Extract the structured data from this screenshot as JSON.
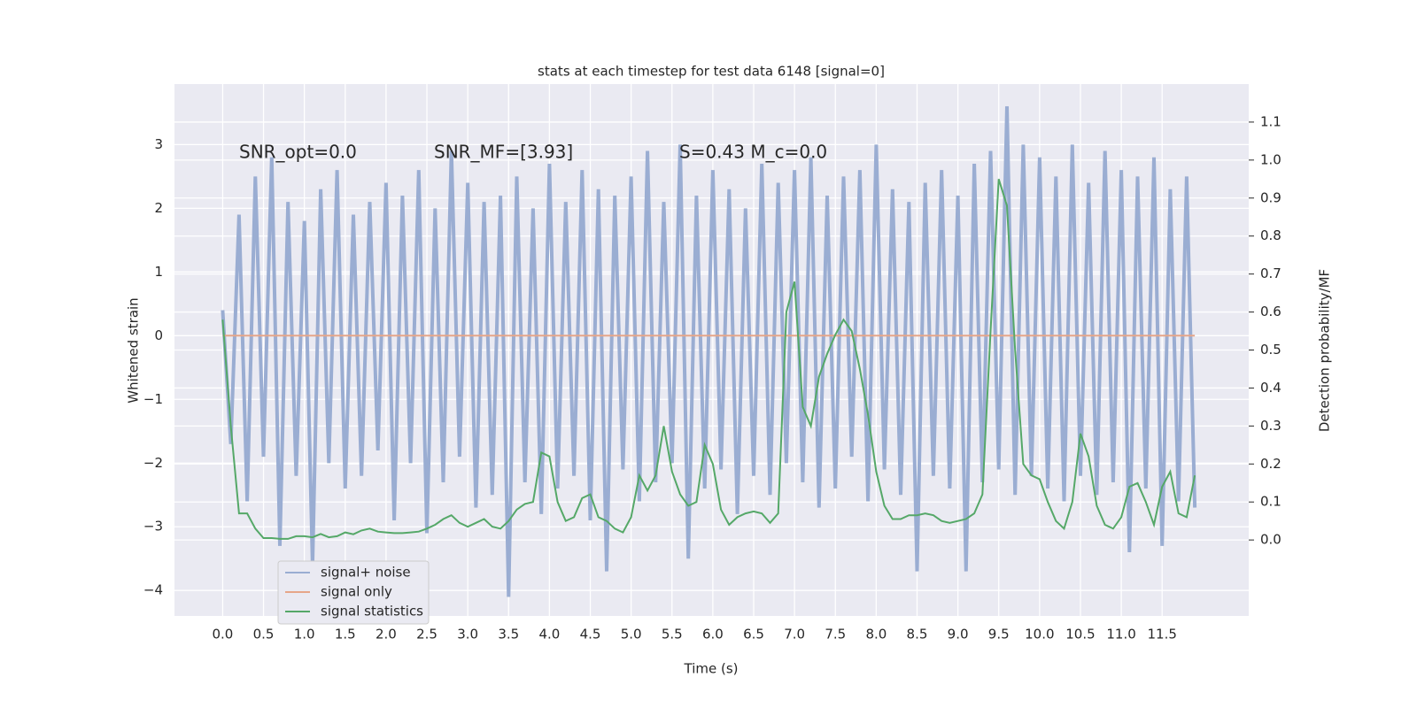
{
  "chart_data": {
    "type": "line",
    "title": "stats at each timestep for test data 6148 [signal=0]",
    "xlabel": "Time (s)",
    "ylabel": "Whitened strain",
    "y2label": "Detection probability/MF",
    "annotations": [
      "SNR_opt=0.0",
      "SNR_MF=[3.93]",
      "S=0.43   M_c=0.0"
    ],
    "xlim": [
      -0.59,
      12.56
    ],
    "ylim": [
      -4.4,
      3.95
    ],
    "y2lim": [
      -0.2,
      1.2
    ],
    "xticks": [
      {
        "value": 0,
        "label": "0.0"
      },
      0.5,
      {
        "value": 1,
        "label": "1.0"
      },
      1.5,
      {
        "value": 2,
        "label": "2.0"
      },
      2.5,
      {
        "value": 3,
        "label": "3.0"
      },
      3.5,
      {
        "value": 4,
        "label": "4.0"
      },
      4.5,
      {
        "value": 5,
        "label": "5.0"
      },
      5.5,
      {
        "value": 6,
        "label": "6.0"
      },
      6.5,
      {
        "value": 7,
        "label": "7.0"
      },
      7.5,
      {
        "value": 8,
        "label": "8.0"
      },
      8.5,
      {
        "value": 9,
        "label": "9.0"
      },
      9.5,
      {
        "value": 10,
        "label": "10.0"
      },
      10.5,
      {
        "value": 11,
        "label": "11.0"
      },
      11.5
    ],
    "yticks": [
      {
        "value": -4,
        "label": "−4"
      },
      {
        "value": -3,
        "label": "−3"
      },
      {
        "value": -2,
        "label": "−2"
      },
      {
        "value": -1,
        "label": "−1"
      },
      0,
      1,
      2,
      3
    ],
    "y2ticks": [
      {
        "value": 0,
        "label": "0.0"
      },
      0.1,
      0.2,
      0.3,
      0.4,
      0.5,
      0.6,
      0.7,
      0.8,
      0.9,
      {
        "value": 1,
        "label": "1.0"
      },
      1.1
    ],
    "grid": true,
    "legend": "lower left",
    "x": [
      0,
      0.1,
      0.2,
      0.3,
      0.4,
      0.5,
      0.6,
      0.7,
      0.8,
      0.9,
      1,
      1.1,
      1.2,
      1.3,
      1.4,
      1.5,
      1.6,
      1.7,
      1.8,
      1.9,
      2,
      2.1,
      2.2,
      2.3,
      2.4,
      2.5,
      2.6,
      2.7,
      2.8,
      2.9,
      3,
      3.1,
      3.2,
      3.3,
      3.4,
      3.5,
      3.6,
      3.7,
      3.8,
      3.9,
      4,
      4.1,
      4.2,
      4.3,
      4.4,
      4.5,
      4.6,
      4.7,
      4.8,
      4.9,
      5,
      5.1,
      5.2,
      5.3,
      5.4,
      5.5,
      5.6,
      5.7,
      5.8,
      5.9,
      6,
      6.1,
      6.2,
      6.3,
      6.4,
      6.5,
      6.6,
      6.7,
      6.8,
      6.9,
      7,
      7.1,
      7.2,
      7.3,
      7.4,
      7.5,
      7.6,
      7.7,
      7.8,
      7.9,
      8,
      8.1,
      8.2,
      8.3,
      8.4,
      8.5,
      8.6,
      8.7,
      8.8,
      8.9,
      9,
      9.1,
      9.2,
      9.3,
      9.4,
      9.5,
      9.6,
      9.7,
      9.8,
      9.9,
      10,
      10.1,
      10.2,
      10.3,
      10.4,
      10.5,
      10.6,
      10.7,
      10.8,
      10.9,
      11,
      11.1,
      11.2,
      11.3,
      11.4,
      11.5,
      11.6,
      11.7,
      11.8,
      11.9
    ],
    "series": [
      {
        "name": "signal+ noise",
        "color": "#9aadd2",
        "values": [
          0.4,
          -1.7,
          1.9,
          -2.6,
          2.5,
          -1.9,
          2.8,
          -3.3,
          2.1,
          -2.2,
          1.8,
          -3.6,
          2.3,
          -2.0,
          2.6,
          -2.4,
          1.9,
          -2.2,
          2.1,
          -1.8,
          2.4,
          -2.9,
          2.2,
          -2.0,
          2.6,
          -3.1,
          2.0,
          -2.3,
          2.9,
          -1.9,
          2.4,
          -2.7,
          2.1,
          -2.5,
          2.2,
          -4.1,
          2.5,
          -2.3,
          2.0,
          -2.8,
          2.7,
          -2.4,
          2.1,
          -2.2,
          2.6,
          -2.9,
          2.3,
          -3.7,
          2.2,
          -2.1,
          2.5,
          -2.6,
          2.9,
          -2.3,
          2.1,
          -2.0,
          3.0,
          -3.5,
          2.2,
          -2.4,
          2.6,
          -2.1,
          2.3,
          -2.8,
          2.0,
          -2.2,
          2.7,
          -2.5,
          2.4,
          -2.0,
          2.6,
          -2.3,
          2.8,
          -2.7,
          2.2,
          -2.4,
          2.5,
          -1.9,
          2.6,
          -2.6,
          3.0,
          -2.1,
          2.3,
          -2.5,
          2.1,
          -3.7,
          2.4,
          -2.2,
          2.6,
          -2.4,
          2.2,
          -3.7,
          2.7,
          -2.3,
          2.9,
          -2.1,
          3.6,
          -2.5,
          3.0,
          -2.2,
          2.8,
          -2.4,
          2.5,
          -2.6,
          3.0,
          -2.2,
          2.4,
          -2.5,
          2.9,
          -2.3,
          2.6,
          -3.4,
          2.5,
          -2.4,
          2.8,
          -3.3,
          2.3,
          -2.6,
          2.5,
          -2.7
        ]
      },
      {
        "name": "signal only",
        "color": "#e6a689",
        "values": [
          0,
          0,
          0,
          0,
          0,
          0,
          0,
          0,
          0,
          0,
          0,
          0,
          0,
          0,
          0,
          0,
          0,
          0,
          0,
          0,
          0,
          0,
          0,
          0,
          0,
          0,
          0,
          0,
          0,
          0,
          0,
          0,
          0,
          0,
          0,
          0,
          0,
          0,
          0,
          0,
          0,
          0,
          0,
          0,
          0,
          0,
          0,
          0,
          0,
          0,
          0,
          0,
          0,
          0,
          0,
          0,
          0,
          0,
          0,
          0,
          0,
          0,
          0,
          0,
          0,
          0,
          0,
          0,
          0,
          0,
          0,
          0,
          0,
          0,
          0,
          0,
          0,
          0,
          0,
          0,
          0,
          0,
          0,
          0,
          0,
          0,
          0,
          0,
          0,
          0,
          0,
          0,
          0,
          0,
          0,
          0,
          0,
          0,
          0,
          0,
          0,
          0,
          0,
          0,
          0,
          0,
          0,
          0,
          0,
          0,
          0,
          0,
          0,
          0,
          0,
          0,
          0,
          0,
          0,
          0
        ]
      },
      {
        "name": "signal statistics",
        "color": "#55a868",
        "axis": "y2",
        "values": [
          0.58,
          0.3,
          0.07,
          0.07,
          0.03,
          0.005,
          0.005,
          0.003,
          0.003,
          0.01,
          0.01,
          0.007,
          0.016,
          0.007,
          0.01,
          0.02,
          0.015,
          0.025,
          0.03,
          0.022,
          0.02,
          0.018,
          0.018,
          0.02,
          0.022,
          0.03,
          0.04,
          0.055,
          0.065,
          0.045,
          0.035,
          0.045,
          0.055,
          0.035,
          0.03,
          0.05,
          0.08,
          0.095,
          0.1,
          0.23,
          0.22,
          0.1,
          0.05,
          0.06,
          0.11,
          0.12,
          0.06,
          0.05,
          0.03,
          0.02,
          0.06,
          0.17,
          0.13,
          0.17,
          0.3,
          0.18,
          0.12,
          0.09,
          0.1,
          0.25,
          0.2,
          0.08,
          0.04,
          0.06,
          0.07,
          0.075,
          0.07,
          0.045,
          0.07,
          0.6,
          0.68,
          0.35,
          0.3,
          0.43,
          0.49,
          0.54,
          0.58,
          0.55,
          0.45,
          0.33,
          0.18,
          0.09,
          0.055,
          0.055,
          0.065,
          0.065,
          0.07,
          0.065,
          0.05,
          0.045,
          0.05,
          0.055,
          0.07,
          0.12,
          0.55,
          0.95,
          0.88,
          0.5,
          0.2,
          0.17,
          0.16,
          0.1,
          0.05,
          0.03,
          0.1,
          0.28,
          0.22,
          0.09,
          0.04,
          0.03,
          0.06,
          0.14,
          0.15,
          0.1,
          0.04,
          0.14,
          0.18,
          0.07,
          0.06,
          0.17
        ]
      }
    ]
  }
}
